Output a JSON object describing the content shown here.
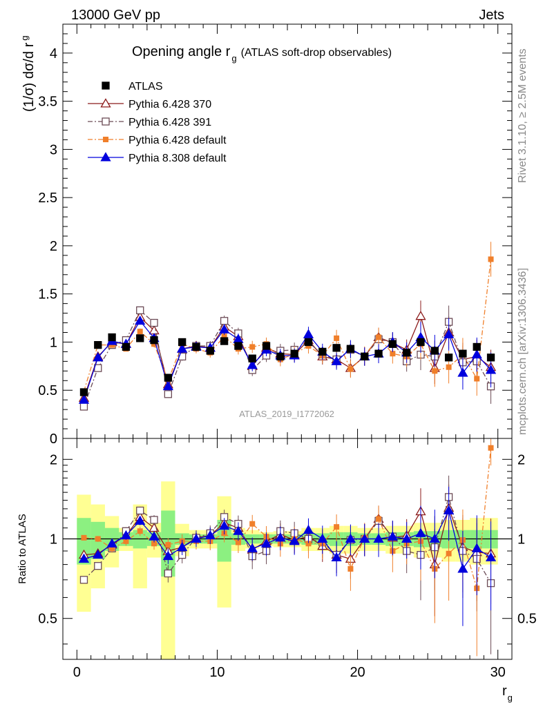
{
  "header": {
    "left": "13000 GeV pp",
    "right": "Jets",
    "side_top": "Rivet 3.1.10, ≥ 2.5M events",
    "side_bottom": "mcplots.cern.ch [arXiv:1306.3436]",
    "analysis_id": "ATLAS_2019_I1772062"
  },
  "chart_data": [
    {
      "panel": "main",
      "type": "scatter",
      "title_main": "Opening angle r",
      "title_sub": "g",
      "title_rest": "(ATLAS soft-drop observables)",
      "ylabel": "(1/σ) dσ/d r",
      "ylabel_sub": "g",
      "xlim": [
        -1,
        31
      ],
      "ylim": [
        0,
        4.3
      ],
      "y_ticks": [
        0,
        0.5,
        1,
        1.5,
        2,
        2.5,
        3,
        3.5,
        4
      ],
      "y_tick_labels": [
        "0",
        "0.5",
        "1",
        "1.5",
        "2",
        "2.5",
        "3",
        "3.5",
        "4"
      ],
      "legend_position": "top-left",
      "x": [
        0.5,
        1.5,
        2.5,
        3.5,
        4.5,
        5.5,
        6.5,
        7.5,
        8.5,
        9.5,
        10.5,
        11.5,
        12.5,
        13.5,
        14.5,
        15.5,
        16.5,
        17.5,
        18.5,
        19.5,
        20.5,
        21.5,
        22.5,
        23.5,
        24.5,
        25.5,
        26.5,
        27.5,
        28.5,
        29.5
      ],
      "series": [
        {
          "name": "ATLAS",
          "color": "#000000",
          "marker": "filled-square",
          "line": "none",
          "values": [
            0.48,
            0.97,
            1.05,
            0.95,
            1.04,
            1.02,
            0.63,
            1.0,
            0.95,
            0.91,
            1.01,
            0.96,
            0.83,
            0.96,
            0.85,
            0.88,
            1.0,
            0.9,
            0.94,
            0.93,
            0.85,
            0.88,
            0.98,
            0.89,
            1.0,
            0.91,
            0.84,
            0.88,
            0.95,
            0.84
          ]
        },
        {
          "name": "Pythia 6.428 370",
          "color": "#8b1a1a",
          "marker": "open-triangle",
          "line": "solid",
          "values": [
            0.42,
            0.85,
            1.0,
            0.98,
            1.26,
            1.12,
            0.56,
            0.93,
            0.96,
            0.94,
            1.16,
            1.06,
            0.75,
            0.94,
            0.88,
            0.87,
            1.02,
            0.85,
            0.82,
            0.73,
            0.85,
            1.05,
            0.99,
            0.92,
            1.27,
            0.73,
            1.1,
            0.82,
            0.85,
            0.74
          ]
        },
        {
          "name": "Pythia 6.428 391",
          "color": "#6b4a55",
          "marker": "open-square",
          "line": "dash-dot",
          "values": [
            0.33,
            0.73,
            0.97,
            1.02,
            1.33,
            1.2,
            0.46,
            0.85,
            0.96,
            0.96,
            1.22,
            1.09,
            0.71,
            0.86,
            0.91,
            0.92,
            1.0,
            0.87,
            0.82,
            0.92,
            0.85,
            1.03,
            1.0,
            0.8,
            0.87,
            0.85,
            1.21,
            0.79,
            0.8,
            0.54
          ]
        },
        {
          "name": "Pythia 6.428 default",
          "color": "#f07f2a",
          "marker": "filled-square-small",
          "line": "dash-dot",
          "values": [
            0.49,
            0.97,
            0.97,
            0.93,
            1.11,
            0.98,
            0.6,
            0.98,
            0.93,
            0.89,
            1.06,
            0.93,
            0.95,
            0.98,
            0.82,
            0.88,
            0.96,
            0.86,
            1.04,
            0.72,
            0.86,
            1.05,
            0.88,
            0.85,
            0.98,
            0.7,
            0.74,
            0.87,
            0.62,
            1.86
          ]
        },
        {
          "name": "Pythia 8.308 default",
          "color": "#0000dd",
          "marker": "filled-triangle",
          "line": "solid",
          "values": [
            0.4,
            0.84,
            1.01,
            0.98,
            1.22,
            1.04,
            0.54,
            0.93,
            0.95,
            0.94,
            1.13,
            1.03,
            0.76,
            0.92,
            0.86,
            0.86,
            1.08,
            0.9,
            0.8,
            0.93,
            0.85,
            0.88,
            1.0,
            0.89,
            1.05,
            0.91,
            1.08,
            0.68,
            0.87,
            0.71
          ]
        }
      ]
    },
    {
      "panel": "ratio",
      "type": "scatter",
      "ylabel": "Ratio to ATLAS",
      "xlabel": "r",
      "xlabel_sub": "g",
      "xlim": [
        -1,
        31
      ],
      "ylim": [
        0.35,
        2.4
      ],
      "x_ticks": [
        0,
        10,
        20,
        30
      ],
      "x_tick_labels": [
        "0",
        "10",
        "20",
        "30"
      ],
      "y_ticks": [
        0.5,
        1,
        2
      ],
      "y_tick_labels": [
        "0.5",
        "1",
        "2"
      ],
      "band_inner_halfwidth": [
        0.2,
        0.16,
        0.1,
        0.06,
        0.08,
        0.06,
        0.28,
        0.05,
        0.04,
        0.04,
        0.18,
        0.05,
        0.04,
        0.04,
        0.04,
        0.04,
        0.05,
        0.05,
        0.06,
        0.06,
        0.05,
        0.05,
        0.06,
        0.06,
        0.07,
        0.07,
        0.08,
        0.08,
        0.08,
        0.08
      ],
      "band_outer_halfwidth": [
        0.47,
        0.35,
        0.22,
        0.1,
        0.35,
        0.15,
        0.65,
        0.14,
        0.08,
        0.08,
        0.45,
        0.1,
        0.08,
        0.06,
        0.07,
        0.07,
        0.1,
        0.1,
        0.12,
        0.12,
        0.1,
        0.1,
        0.12,
        0.12,
        0.15,
        0.15,
        0.18,
        0.18,
        0.2,
        0.2
      ],
      "series": [
        {
          "name": "Pythia 6.428 370",
          "values": [
            0.87,
            0.88,
            0.95,
            1.03,
            1.21,
            1.1,
            0.9,
            0.93,
            1.01,
            1.03,
            1.15,
            1.1,
            0.91,
            0.98,
            1.04,
            0.99,
            1.02,
            0.94,
            0.87,
            0.84,
            1.0,
            1.19,
            1.01,
            1.03,
            1.27,
            0.8,
            1.31,
            0.93,
            0.89,
            0.88
          ]
        },
        {
          "name": "Pythia 6.428 391",
          "values": [
            0.7,
            0.79,
            0.92,
            1.07,
            1.28,
            1.18,
            0.74,
            0.87,
            1.01,
            1.05,
            1.21,
            1.14,
            0.86,
            0.9,
            1.07,
            1.05,
            1.0,
            0.97,
            0.87,
            0.99,
            1.0,
            1.17,
            1.02,
            0.9,
            0.87,
            0.93,
            1.44,
            0.9,
            0.84,
            0.68
          ]
        },
        {
          "name": "Pythia 6.428 default",
          "values": [
            1.01,
            1.0,
            0.92,
            0.98,
            1.07,
            0.96,
            0.95,
            0.98,
            0.98,
            0.98,
            1.05,
            0.97,
            1.14,
            1.02,
            0.96,
            1.0,
            0.96,
            0.96,
            1.11,
            0.77,
            1.01,
            1.19,
            0.9,
            0.96,
            0.98,
            0.77,
            0.88,
            0.99,
            0.65,
            2.21
          ]
        },
        {
          "name": "Pythia 8.308 default",
          "values": [
            0.84,
            0.87,
            0.96,
            1.03,
            1.17,
            1.02,
            0.86,
            0.93,
            1.0,
            1.03,
            1.12,
            1.07,
            0.92,
            0.96,
            1.01,
            0.98,
            1.08,
            1.0,
            0.85,
            1.0,
            1.0,
            1.0,
            1.02,
            1.0,
            1.05,
            1.0,
            1.28,
            0.77,
            0.92,
            0.85
          ]
        }
      ]
    }
  ]
}
